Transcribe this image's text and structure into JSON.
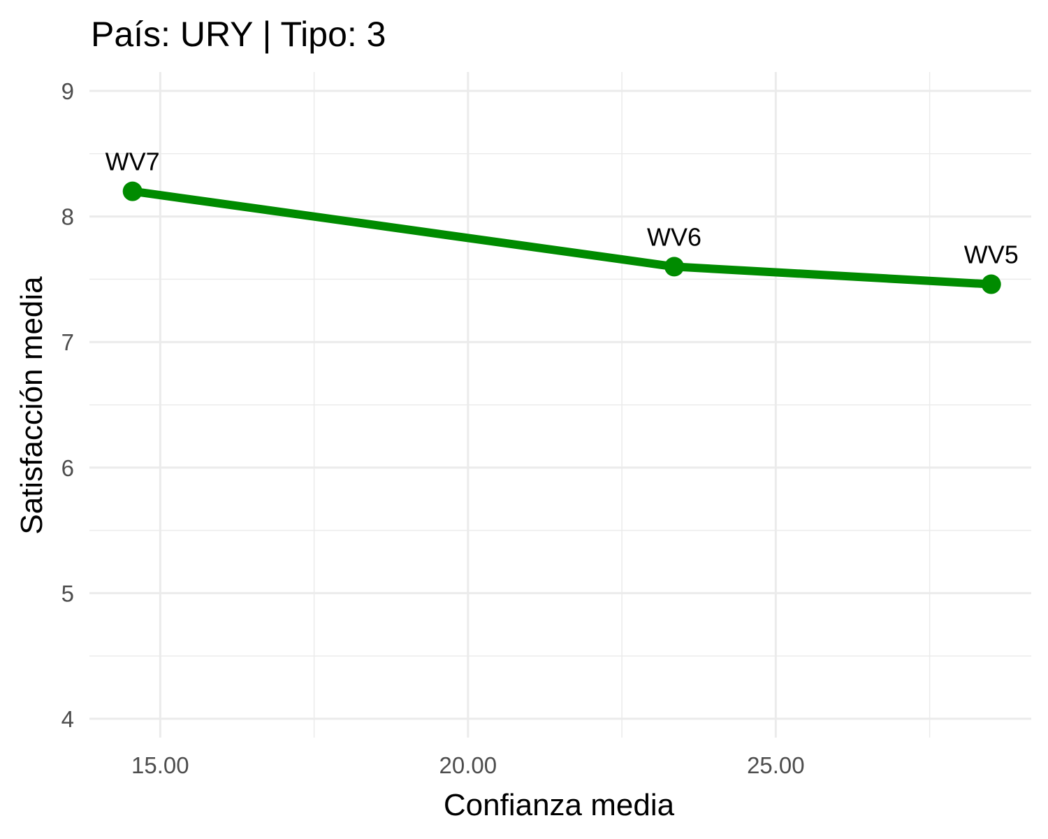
{
  "chart_data": {
    "type": "line",
    "title": "País: URY | Tipo: 3",
    "xlabel": "Confianza media",
    "ylabel": "Satisfacción media",
    "xlim": [
      13.85,
      29.15
    ],
    "ylim": [
      3.85,
      9.15
    ],
    "x_ticks": [
      15,
      20,
      25
    ],
    "x_tick_labels": [
      "15.00",
      "20.00",
      "25.00"
    ],
    "x_minor_ticks": [
      17.5,
      22.5,
      27.5
    ],
    "y_ticks": [
      4,
      5,
      6,
      7,
      8,
      9
    ],
    "y_tick_labels": [
      "4",
      "5",
      "6",
      "7",
      "8",
      "9"
    ],
    "y_minor_ticks": [
      4.5,
      5.5,
      6.5,
      7.5,
      8.5
    ],
    "grid": true,
    "color": "#008B00",
    "series": [
      {
        "points": [
          {
            "label": "WV7",
            "x": 14.55,
            "y": 8.2
          },
          {
            "label": "WV6",
            "x": 23.35,
            "y": 7.6
          },
          {
            "label": "WV5",
            "x": 28.5,
            "y": 7.46
          }
        ]
      }
    ]
  }
}
